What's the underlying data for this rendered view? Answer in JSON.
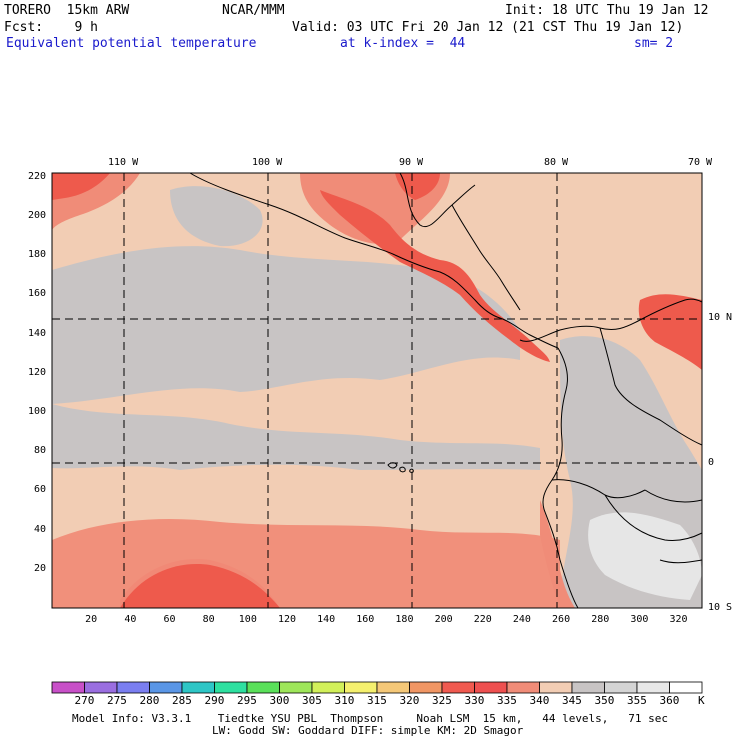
{
  "header": {
    "model": "TORERO  15km ARW",
    "center": "NCAR/MMM",
    "init": "Init: 18 UTC Thu 19 Jan 12",
    "fcst": "Fcst:    9 h",
    "valid": "Valid: 03 UTC Fri 20 Jan 12 (21 CST Thu 19 Jan 12)",
    "field": "Equivalent potential temperature",
    "level": "at k-index =  44",
    "smooth": "sm= 2"
  },
  "map": {
    "lon_labels": [
      "110 W",
      "100 W",
      "90 W",
      "80 W",
      "70 W"
    ],
    "lat_labels": [
      "10 N",
      "0",
      "10 S"
    ],
    "y_ticks": [
      "20",
      "40",
      "60",
      "80",
      "100",
      "120",
      "140",
      "160",
      "180",
      "200",
      "220"
    ],
    "x_ticks": [
      "20",
      "40",
      "60",
      "80",
      "100",
      "120",
      "140",
      "160",
      "180",
      "200",
      "220",
      "240",
      "260",
      "280",
      "300",
      "320"
    ]
  },
  "colorbar": {
    "unit": "K",
    "labels": [
      "270",
      "275",
      "280",
      "285",
      "290",
      "295",
      "300",
      "305",
      "310",
      "315",
      "320",
      "325",
      "330",
      "335",
      "340",
      "345",
      "350",
      "355",
      "360"
    ],
    "colors": [
      "#c850c8",
      "#9a6ee0",
      "#7a7ef0",
      "#5a96e6",
      "#2ec6c6",
      "#2ee0a0",
      "#5ae05a",
      "#9ee65a",
      "#d2f05a",
      "#f5f06e",
      "#f5c878",
      "#f09664",
      "#f05a50",
      "#ee5050",
      "#f08c78",
      "#f2cdb4",
      "#c8c4c4",
      "#d4d4d4",
      "#e8e8e8",
      "#ffffff"
    ]
  },
  "footer": {
    "line1": "Model Info: V3.3.1    Tiedtke YSU PBL  Thompson     Noah LSM  15 km,   44 levels,   71 sec",
    "line2": "LW: Godd SW: Goddard DIFF: simple KM: 2D Smagor"
  }
}
